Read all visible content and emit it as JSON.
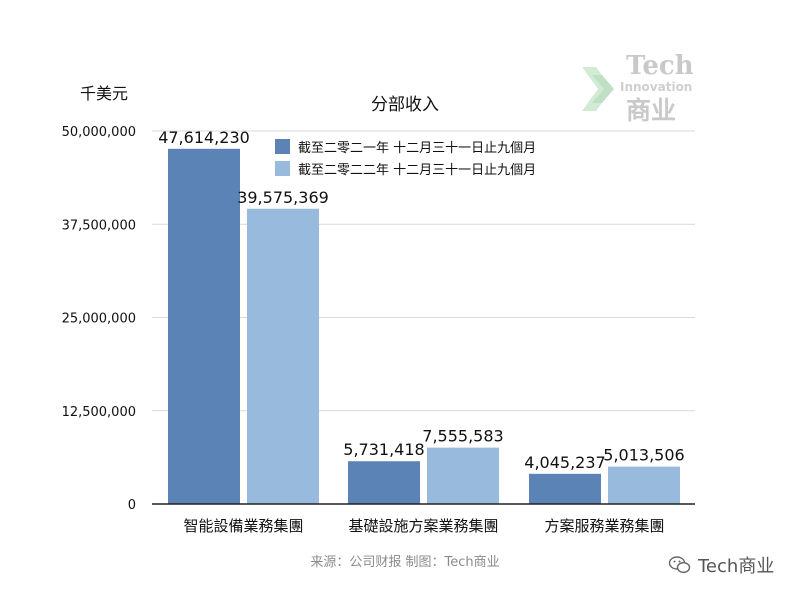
{
  "unit_label": "千美元",
  "source_text": "来源：公司财报 制图：Tech商业",
  "logo": {
    "line1": "Tech",
    "line2": "Innovation",
    "line3": "商业"
  },
  "watermark": {
    "text": "Tech商业",
    "icon": "wechat-icon"
  },
  "colors": {
    "series1": "#5b83b5",
    "series2": "#98bbdd",
    "axis": "#222222",
    "grid": "#d9d9d9",
    "logo_arrow": "#d3ead3"
  },
  "chart_data": {
    "type": "bar",
    "title": "分部收入",
    "ylabel": "千美元",
    "ylim": [
      0,
      50000000
    ],
    "yticks": [
      0,
      12500000,
      25000000,
      37500000,
      50000000
    ],
    "ytick_labels": [
      "0",
      "12,500,000",
      "25,000,000",
      "37,500,000",
      "50,000,000"
    ],
    "grid": true,
    "legend_position": "top-center",
    "categories": [
      "智能設備業務集團",
      "基礎設施方案業務集團",
      "方案服務業務集團"
    ],
    "series": [
      {
        "name": "截至二零二一年 十二月三十一日止九個月",
        "values": [
          47614230,
          5731418,
          4045237
        ],
        "labels": [
          "47,614,230",
          "5,731,418",
          "4,045,237"
        ]
      },
      {
        "name": "截至二零二二年 十二月三十一日止九個月",
        "values": [
          39575369,
          7555583,
          5013506
        ],
        "labels": [
          "39,575,369",
          "7,555,583",
          "5,013,506"
        ]
      }
    ]
  }
}
